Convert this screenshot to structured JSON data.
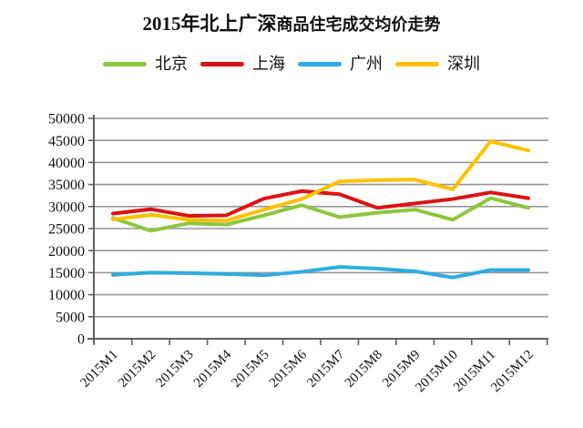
{
  "chart_data": {
    "type": "line",
    "title": "2015年北上广深商品住宅成交均价走势",
    "title_prefix": "2015年北上广深",
    "title_suffix": "商品住宅成交均价走势",
    "categories": [
      "2015M1",
      "2015M2",
      "2015M3",
      "2015M4",
      "2015M5",
      "2015M6",
      "2015M7",
      "2015M8",
      "2015M9",
      "2015M10",
      "2015M11",
      "2015M12"
    ],
    "series": [
      {
        "name": "北京",
        "color": "#8DC63F",
        "values": [
          27400,
          24500,
          26200,
          25900,
          28000,
          30300,
          27600,
          28600,
          29300,
          27000,
          31900,
          29700
        ]
      },
      {
        "name": "上海",
        "color": "#DC1212",
        "values": [
          28400,
          29400,
          27900,
          28000,
          31800,
          33500,
          32800,
          29700,
          30700,
          31700,
          33200,
          31900
        ]
      },
      {
        "name": "广州",
        "color": "#2FABE1",
        "values": [
          14500,
          15000,
          14900,
          14700,
          14400,
          15200,
          16300,
          15900,
          15300,
          13900,
          15600,
          15600
        ]
      },
      {
        "name": "深圳",
        "color": "#FFC000",
        "values": [
          27100,
          28100,
          27000,
          26800,
          29300,
          31700,
          35700,
          36000,
          36100,
          33900,
          44800,
          42700
        ]
      }
    ],
    "ylim": [
      0,
      50000
    ],
    "ytick_step": 5000,
    "ytick_labels": [
      "0",
      "5000",
      "10000",
      "15000",
      "20000",
      "25000",
      "30000",
      "35000",
      "40000",
      "45000",
      "50000"
    ],
    "grid": true,
    "legend_position": "top",
    "axis_color": "#5f5f5f",
    "grid_color": "#979797",
    "text_color": "#111111",
    "background": "#ffffff"
  }
}
